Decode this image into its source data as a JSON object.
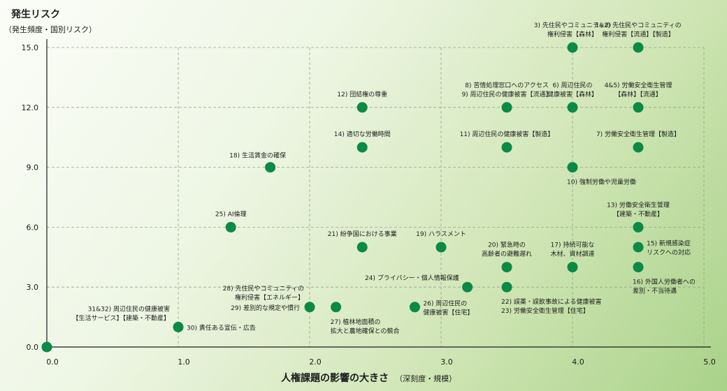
{
  "chart_data": {
    "type": "scatter",
    "title": "",
    "ylabel": "発生リスク",
    "ylabel_sub": "（発生頻度・国別リスク）",
    "xlabel": "人権課題の影響の大きさ",
    "xlabel_sub": "（深刻度・規模）",
    "xlim": [
      0,
      5
    ],
    "ylim": [
      0,
      15
    ],
    "xticks": [
      "0.0",
      "1.0",
      "2.0",
      "3.0",
      "4.0",
      "5.0"
    ],
    "yticks": [
      "0.0",
      "3.0",
      "6.0",
      "9.0",
      "12.0",
      "15.0"
    ],
    "grid": true,
    "point_color": "#0b8a45",
    "points": [
      {
        "x": 0.0,
        "y": 0,
        "label": []
      },
      {
        "x": 1.0,
        "y": 1,
        "label": [
          "31&32) 周辺住民の健康被害",
          "【生活サービス】【建築・不動産】"
        ],
        "pos": "tl"
      },
      {
        "x": 1.0,
        "y": 1,
        "label": [
          "30) 責任ある宣伝・広告"
        ],
        "pos": "r"
      },
      {
        "x": 1.4,
        "y": 6,
        "label": [
          "25) AI倫理"
        ],
        "pos": "t"
      },
      {
        "x": 1.7,
        "y": 9,
        "label": [
          "18) 生活賃金の確保"
        ],
        "pos": "tl2"
      },
      {
        "x": 2.4,
        "y": 12,
        "label": [
          "12) 団結権の尊重"
        ],
        "pos": "t"
      },
      {
        "x": 2.4,
        "y": 10,
        "label": [
          "14) 適切な労働時間"
        ],
        "pos": "t"
      },
      {
        "x": 2.0,
        "y": 2,
        "label": [
          "28) 先住民やコミュニティの",
          "権利侵害【エネルギー】"
        ],
        "pos": "tlw"
      },
      {
        "x": 2.0,
        "y": 2,
        "label": [
          "29) 差別的な規定や慣行"
        ],
        "pos": "l"
      },
      {
        "x": 2.2,
        "y": 2,
        "label": [
          "27) 植林地面積の",
          "拡大と農地確保との競合"
        ],
        "pos": "b"
      },
      {
        "x": 2.4,
        "y": 5,
        "label": [
          "21) 紛争国における事業"
        ],
        "pos": "t"
      },
      {
        "x": 3.0,
        "y": 5,
        "label": [
          "19) ハラスメント"
        ],
        "pos": "t"
      },
      {
        "x": 2.8,
        "y": 2,
        "label": [
          "26) 周辺住民の",
          "健康被害【住宅】"
        ],
        "pos": "r"
      },
      {
        "x": 3.2,
        "y": 3,
        "label": [
          "24) プライバシー・個人情報保護"
        ],
        "pos": "tl"
      },
      {
        "x": 3.5,
        "y": 12,
        "label": [
          "8) 苦情処理窓口へのアクセス",
          "9) 周辺住民の健康被害【流通】"
        ],
        "pos": "t"
      },
      {
        "x": 3.5,
        "y": 10,
        "label": [
          "11) 周辺住民の健康被害【製造】"
        ],
        "pos": "t"
      },
      {
        "x": 3.5,
        "y": 4,
        "label": [
          "20) 緊急時の",
          "高齢者の避難遅れ"
        ],
        "pos": "t"
      },
      {
        "x": 3.5,
        "y": 3,
        "label": [
          "22) 誤薬・誤飲事故による健康被害",
          "23) 労働安全衛生管理【住宅】"
        ],
        "pos": "b"
      },
      {
        "x": 4.0,
        "y": 15,
        "label": [
          "3) 先住民やコミュニティの",
          "権利侵害【森林】"
        ],
        "pos": "t"
      },
      {
        "x": 4.0,
        "y": 12,
        "label": [
          "6) 周辺住民の",
          "健康被害【森林】"
        ],
        "pos": "t"
      },
      {
        "x": 4.0,
        "y": 9,
        "label": [
          "10) 強制労働や児童労働"
        ],
        "pos": "b"
      },
      {
        "x": 4.0,
        "y": 4,
        "label": [
          "17) 持続可能な",
          "木材、資材調達"
        ],
        "pos": "t"
      },
      {
        "x": 4.5,
        "y": 15,
        "label": [
          "1&2) 先住民やコミュニティの",
          "権利侵害【流通】【製造】"
        ],
        "pos": "t"
      },
      {
        "x": 4.5,
        "y": 12,
        "label": [
          "4&5) 労働安全衛生管理",
          "【森林】【流通】"
        ],
        "pos": "t"
      },
      {
        "x": 4.5,
        "y": 10,
        "label": [
          "7) 労働安全衛生管理【製造】"
        ],
        "pos": "t"
      },
      {
        "x": 4.5,
        "y": 6,
        "label": [
          "13) 労働安全衛生管理",
          "【建築・不動産】"
        ],
        "pos": "t"
      },
      {
        "x": 4.5,
        "y": 5,
        "label": [
          "15) 新規感染症",
          "リスクへの対応"
        ],
        "pos": "r"
      },
      {
        "x": 4.5,
        "y": 4,
        "label": [
          "16) 外国人労働者への",
          "差別・不当待遇"
        ],
        "pos": "b"
      }
    ]
  }
}
